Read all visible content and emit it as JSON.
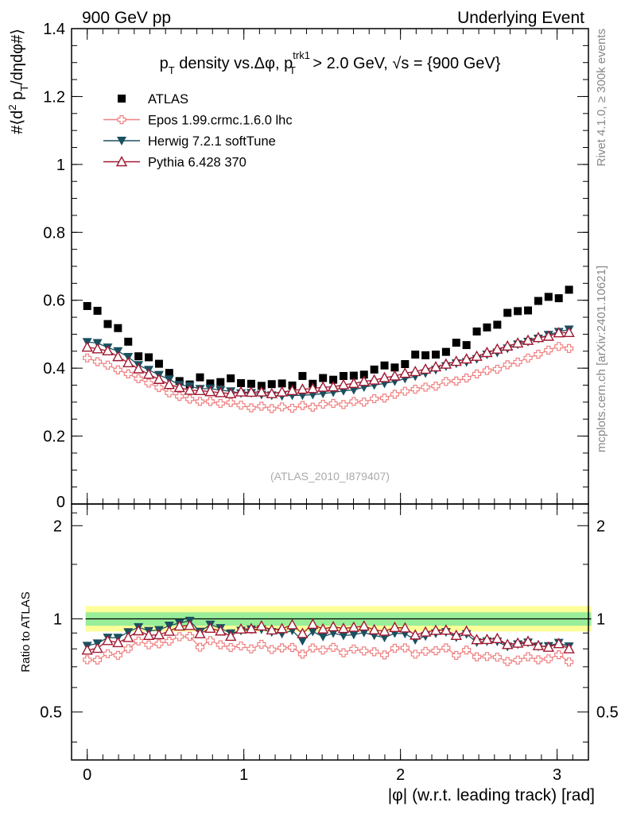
{
  "header": {
    "left_label": "900 GeV pp",
    "right_label": "Underlying Event"
  },
  "side_labels": {
    "rivet": "Rivet 4.1.0, ≥ 300k events",
    "mcplots": "mcplots.cern.ch [arXiv:2401.10621]"
  },
  "chart_data": {
    "type": "scatter",
    "title": "pT density vs.Δφ, pT trk1 > 2.0 GeV, √s = {900 GeV}",
    "title_parts": {
      "p": "p",
      "t_sub": "T",
      "mid": " density vs.Δφ, p",
      "trk": "trk1",
      "t_sub2": "T",
      "tail1": " > 2.0 GeV, ",
      "sqrt": "√",
      "tail2": "s = {900 GeV}"
    },
    "ylabel": "#⟨d² pT/dηdφ#⟩",
    "ylabel_parts": {
      "a": "#⟨d",
      "two": "2",
      "b": " p",
      "t": "T",
      "c": "/dηdφ#⟩"
    },
    "xlabel": "|φ| (w.r.t. leading track) [rad]",
    "ratio_ylabel": "Ratio to ATLAS",
    "watermark": "(ATLAS_2010_I879407)",
    "xlim": [
      -0.1,
      3.2
    ],
    "ylim": [
      0,
      1.4
    ],
    "ratio_ylim": [
      0.35,
      2.35
    ],
    "xticks": [
      0,
      1,
      2,
      3
    ],
    "xtick_labels": [
      "0",
      "1",
      "2",
      "3"
    ],
    "yticks": [
      0.2,
      0.4,
      0.6,
      0.8,
      1.0,
      1.2,
      1.4
    ],
    "ytick_labels": [
      "0.2",
      "0.4",
      "0.6",
      "0.8",
      "1",
      "1.2",
      "1.4"
    ],
    "y_zero_label": "0",
    "ratio_yticks": [
      0.5,
      1,
      2
    ],
    "ratio_ytick_labels": [
      "0.5",
      "1",
      "2"
    ],
    "ratio_band": {
      "green": [
        0.95,
        1.05
      ],
      "yellow": [
        0.91,
        1.1
      ]
    },
    "x": [
      0.0,
      0.0654,
      0.1309,
      0.1963,
      0.2618,
      0.3272,
      0.3927,
      0.4581,
      0.5236,
      0.589,
      0.6545,
      0.7199,
      0.7854,
      0.8508,
      0.9163,
      0.9817,
      1.0472,
      1.1126,
      1.1781,
      1.2435,
      1.309,
      1.3744,
      1.4399,
      1.5053,
      1.5708,
      1.6362,
      1.7017,
      1.7671,
      1.8326,
      1.898,
      1.9635,
      2.0289,
      2.0944,
      2.1598,
      2.2253,
      2.2907,
      2.3562,
      2.4216,
      2.4871,
      2.5525,
      2.618,
      2.6834,
      2.7489,
      2.8143,
      2.8798,
      2.9452,
      3.0107,
      3.0761
    ],
    "series": [
      {
        "name": "ATLAS",
        "color": "#000000",
        "marker": "square",
        "values": [
          0.583,
          0.569,
          0.53,
          0.518,
          0.478,
          0.435,
          0.432,
          0.413,
          0.386,
          0.362,
          0.352,
          0.373,
          0.355,
          0.359,
          0.37,
          0.356,
          0.354,
          0.348,
          0.353,
          0.355,
          0.349,
          0.377,
          0.354,
          0.371,
          0.366,
          0.377,
          0.378,
          0.381,
          0.396,
          0.408,
          0.402,
          0.412,
          0.44,
          0.438,
          0.44,
          0.448,
          0.475,
          0.468,
          0.508,
          0.52,
          0.528,
          0.563,
          0.568,
          0.57,
          0.598,
          0.61,
          0.606,
          0.631
        ]
      },
      {
        "name": "Epos 1.99.crmc.1.6.0 lhc",
        "color": "#f08080",
        "marker": "cross",
        "values": [
          0.43,
          0.419,
          0.409,
          0.395,
          0.383,
          0.369,
          0.356,
          0.343,
          0.327,
          0.317,
          0.309,
          0.302,
          0.302,
          0.296,
          0.299,
          0.291,
          0.283,
          0.288,
          0.281,
          0.286,
          0.282,
          0.29,
          0.285,
          0.294,
          0.296,
          0.293,
          0.302,
          0.3,
          0.31,
          0.312,
          0.323,
          0.332,
          0.338,
          0.344,
          0.347,
          0.361,
          0.362,
          0.371,
          0.383,
          0.393,
          0.397,
          0.41,
          0.418,
          0.43,
          0.441,
          0.453,
          0.464,
          0.458
        ]
      },
      {
        "name": "Herwig 7.2.1 softTune",
        "color": "#1a5060",
        "marker": "triangle-down",
        "values": [
          0.477,
          0.474,
          0.461,
          0.45,
          0.433,
          0.409,
          0.395,
          0.38,
          0.367,
          0.351,
          0.347,
          0.339,
          0.34,
          0.335,
          0.332,
          0.326,
          0.327,
          0.322,
          0.32,
          0.318,
          0.32,
          0.32,
          0.322,
          0.325,
          0.329,
          0.333,
          0.336,
          0.344,
          0.35,
          0.355,
          0.361,
          0.369,
          0.376,
          0.385,
          0.395,
          0.406,
          0.414,
          0.418,
          0.427,
          0.44,
          0.446,
          0.458,
          0.47,
          0.478,
          0.487,
          0.498,
          0.507,
          0.514
        ]
      },
      {
        "name": "Pythia 6.428 370",
        "color": "#a01830",
        "marker": "triangle-up",
        "values": [
          0.462,
          0.457,
          0.451,
          0.434,
          0.416,
          0.398,
          0.382,
          0.367,
          0.352,
          0.343,
          0.335,
          0.334,
          0.331,
          0.328,
          0.325,
          0.33,
          0.329,
          0.33,
          0.325,
          0.33,
          0.334,
          0.338,
          0.34,
          0.344,
          0.345,
          0.351,
          0.355,
          0.361,
          0.365,
          0.372,
          0.377,
          0.385,
          0.39,
          0.397,
          0.404,
          0.412,
          0.42,
          0.427,
          0.435,
          0.446,
          0.456,
          0.465,
          0.474,
          0.482,
          0.49,
          0.494,
          0.504,
          0.505
        ]
      }
    ]
  }
}
